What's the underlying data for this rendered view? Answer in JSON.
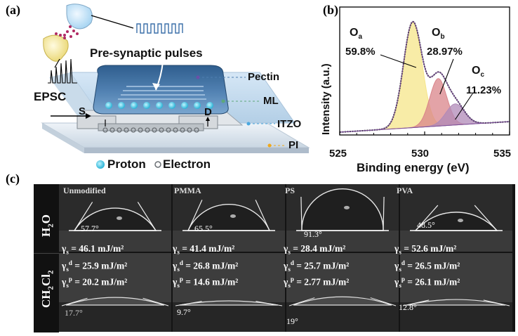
{
  "panel_a": {
    "label": "(a)",
    "pre_synaptic": "Pre-synaptic pulses",
    "epsc": "EPSC",
    "source": "S",
    "drain": "D",
    "layers": [
      "Pectin",
      "ML",
      "ITZO",
      "PI"
    ],
    "legend": {
      "proton": "Proton",
      "electron": "Electron"
    },
    "colors": {
      "pectin": "#4f7fb0",
      "ml": "#5da87a",
      "itzo": "#4aa8e0",
      "pi": "#f0a81a"
    }
  },
  "panel_b": {
    "label": "(b)",
    "peaks": [
      {
        "name": "O",
        "sub": "a",
        "pct": "59.8%"
      },
      {
        "name": "O",
        "sub": "b",
        "pct": "28.97%"
      },
      {
        "name": "O",
        "sub": "c",
        "pct": "11.23%"
      }
    ]
  },
  "chart_data": {
    "type": "line",
    "xlabel": "Binding energy (eV)",
    "ylabel": "Intensity (a.u.)",
    "xlim": [
      525,
      535
    ],
    "x_ticks": [
      "525",
      "530",
      "535"
    ],
    "components": [
      {
        "name": "Oa",
        "center": 529.3,
        "amplitude": 1.0,
        "width": 0.55,
        "color": "#f5e58a"
      },
      {
        "name": "Ob",
        "center": 530.8,
        "amplitude": 0.45,
        "width": 0.5,
        "color": "#d9848a"
      },
      {
        "name": "Oc",
        "center": 531.8,
        "amplitude": 0.2,
        "width": 0.55,
        "color": "#b08ab8"
      }
    ],
    "baseline": [
      0.0,
      0.1
    ]
  },
  "panel_c": {
    "label": "(c)",
    "row_labels": {
      "water": "H2O",
      "dcm": "CH2Cl2"
    },
    "columns": [
      {
        "name": "Unmodified",
        "water_angle": "57.7°",
        "dcm_angle": "17.7°",
        "gs": "= 46.1 mJ/m²",
        "gsd": "= 25.9 mJ/m²",
        "gsp": "= 20.2 mJ/m²"
      },
      {
        "name": "PMMA",
        "water_angle": "65.5°",
        "dcm_angle": "9.7°",
        "gs": "= 41.4 mJ/m²",
        "gsd": "= 26.8 mJ/m²",
        "gsp": "= 14.6 mJ/m²"
      },
      {
        "name": "PS",
        "water_angle": "91.3°",
        "dcm_angle": "19°",
        "gs": "= 28.4 mJ/m²",
        "gsd": "= 25.7 mJ/m²",
        "gsp": "= 2.77 mJ/m²"
      },
      {
        "name": "PVA",
        "water_angle": "48.5°",
        "dcm_angle": "12.8°",
        "gs": "= 52.6 mJ/m²",
        "gsd": "= 26.5 mJ/m²",
        "gsp": "= 26.1 mJ/m²"
      }
    ]
  }
}
